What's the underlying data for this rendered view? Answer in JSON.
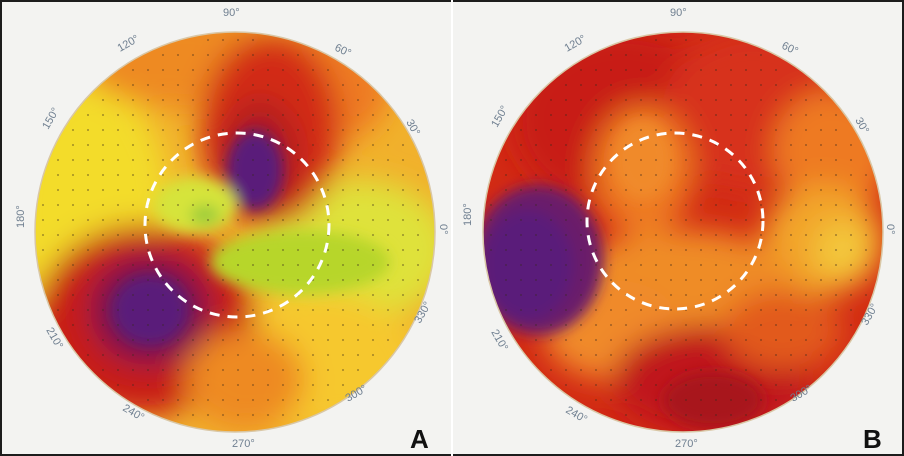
{
  "figure": {
    "panels": [
      {
        "label": "A",
        "angle_labels": [
          "90°",
          "60°",
          "30°",
          "0°",
          "330°",
          "300°",
          "270°",
          "240°",
          "210°",
          "180°",
          "150°",
          "120°"
        ]
      },
      {
        "label": "B",
        "angle_labels": [
          "90°",
          "60°",
          "30°",
          "0°",
          "330°",
          "300°",
          "270°",
          "240°",
          "210°",
          "180°",
          "150°",
          "120°"
        ]
      }
    ],
    "colors": {
      "purple": "#5a1a7a",
      "dark_red": "#b01010",
      "red": "#d22a14",
      "orange": "#ee7a20",
      "yellow": "#f3dc2a",
      "green": "#b7d62a"
    }
  }
}
